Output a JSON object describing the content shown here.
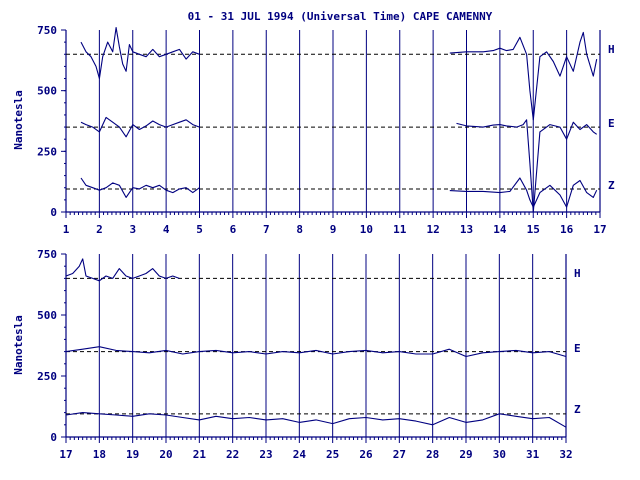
{
  "chart_data": {
    "type": "line",
    "title": "01 - 31 JUL 1994 (Universal Time) CAPE CAMENNY",
    "ylabel": "Nanotesla",
    "ylim": [
      0,
      750
    ],
    "y_ticks": [
      "0",
      "250",
      "500",
      "750"
    ],
    "colors": {
      "trace": "#000080",
      "axis": "#000080"
    },
    "components": [
      "H",
      "E",
      "Z"
    ],
    "panels": [
      {
        "xlim": [
          1,
          17
        ],
        "x_ticks": [
          "1",
          "2",
          "3",
          "4",
          "5",
          "6",
          "7",
          "8",
          "9",
          "10",
          "11",
          "12",
          "13",
          "14",
          "15",
          "16",
          "17"
        ],
        "baselines": {
          "H": 650,
          "E": 350,
          "Z": 95
        },
        "segments": [
          {
            "name": "H",
            "x": [
              1.45,
              1.6,
              1.75,
              1.9,
              2.0,
              2.1,
              2.25,
              2.4,
              2.5,
              2.6,
              2.7,
              2.8,
              2.9,
              3.0,
              3.2,
              3.4,
              3.6,
              3.8,
              4.0,
              4.2,
              4.4,
              4.6,
              4.8,
              5.0
            ],
            "y": [
              700,
              660,
              640,
              600,
              550,
              640,
              700,
              660,
              760,
              680,
              610,
              580,
              690,
              660,
              650,
              640,
              670,
              640,
              650,
              660,
              670,
              630,
              660,
              650
            ]
          },
          {
            "name": "H",
            "x": [
              12.5,
              13.0,
              13.5,
              13.8,
              14.0,
              14.2,
              14.4,
              14.6,
              14.8,
              14.9,
              15.0,
              15.2,
              15.4,
              15.6,
              15.8,
              16.0,
              16.2,
              16.4,
              16.5,
              16.6,
              16.8,
              16.9
            ],
            "y": [
              655,
              660,
              660,
              665,
              675,
              665,
              670,
              720,
              650,
              500,
              380,
              640,
              660,
              620,
              560,
              640,
              580,
              700,
              740,
              650,
              560,
              630
            ]
          },
          {
            "name": "E",
            "x": [
              1.45,
              1.6,
              1.8,
              2.0,
              2.2,
              2.4,
              2.6,
              2.8,
              3.0,
              3.2,
              3.4,
              3.6,
              3.8,
              4.0,
              4.2,
              4.4,
              4.6,
              4.8,
              5.0
            ],
            "y": [
              370,
              360,
              350,
              330,
              390,
              370,
              350,
              310,
              360,
              340,
              355,
              375,
              360,
              350,
              360,
              370,
              380,
              360,
              350
            ]
          },
          {
            "name": "E",
            "x": [
              12.7,
              13.0,
              13.5,
              13.8,
              14.0,
              14.2,
              14.5,
              14.7,
              14.8,
              14.9,
              15.0,
              15.2,
              15.5,
              15.8,
              16.0,
              16.2,
              16.4,
              16.6,
              16.8,
              16.9
            ],
            "y": [
              365,
              355,
              350,
              358,
              360,
              355,
              350,
              360,
              380,
              200,
              0,
              330,
              360,
              350,
              300,
              370,
              340,
              360,
              330,
              320
            ]
          },
          {
            "name": "Z",
            "x": [
              1.45,
              1.6,
              1.8,
              2.0,
              2.2,
              2.4,
              2.6,
              2.8,
              3.0,
              3.2,
              3.4,
              3.6,
              3.8,
              4.0,
              4.2,
              4.4,
              4.6,
              4.8,
              5.0
            ],
            "y": [
              140,
              110,
              100,
              90,
              100,
              120,
              110,
              60,
              100,
              95,
              110,
              100,
              110,
              90,
              80,
              95,
              100,
              80,
              100
            ]
          },
          {
            "name": "Z",
            "x": [
              12.5,
              13.0,
              13.5,
              14.0,
              14.3,
              14.6,
              14.8,
              14.9,
              15.0,
              15.2,
              15.5,
              15.8,
              16.0,
              16.2,
              16.4,
              16.6,
              16.8,
              16.9
            ],
            "y": [
              88,
              85,
              85,
              80,
              85,
              140,
              90,
              50,
              20,
              80,
              110,
              70,
              20,
              110,
              130,
              80,
              60,
              90
            ]
          }
        ]
      },
      {
        "xlim": [
          17,
          32
        ],
        "x_ticks": [
          "17",
          "18",
          "19",
          "20",
          "21",
          "22",
          "23",
          "24",
          "25",
          "26",
          "27",
          "28",
          "29",
          "30",
          "31",
          "32"
        ],
        "baselines": {
          "H": 650,
          "E": 350,
          "Z": 95
        },
        "segments": [
          {
            "name": "H",
            "x": [
              17.0,
              17.2,
              17.4,
              17.5,
              17.6,
              17.8,
              18.0,
              18.2,
              18.4,
              18.6,
              18.8,
              19.0,
              19.2,
              19.4,
              19.6,
              19.8,
              20.0,
              20.2,
              20.4
            ],
            "y": [
              660,
              670,
              700,
              730,
              660,
              650,
              640,
              660,
              650,
              690,
              660,
              650,
              660,
              670,
              690,
              660,
              650,
              660,
              650
            ]
          },
          {
            "name": "E",
            "x": [
              17.0,
              17.5,
              18.0,
              18.5,
              19.0,
              19.5,
              20.0,
              20.5,
              21.0,
              21.5,
              22.0,
              22.5,
              23.0,
              23.5,
              24.0,
              24.5,
              25.0,
              25.5,
              26.0,
              26.5,
              27.0,
              27.5,
              28.0,
              28.5,
              29.0,
              29.5,
              30.0,
              30.5,
              31.0,
              31.5,
              32.0
            ],
            "y": [
              350,
              360,
              370,
              355,
              350,
              345,
              355,
              340,
              350,
              355,
              345,
              350,
              340,
              350,
              345,
              355,
              340,
              350,
              355,
              345,
              350,
              340,
              340,
              360,
              330,
              345,
              350,
              355,
              345,
              350,
              330
            ]
          },
          {
            "name": "Z",
            "x": [
              17.0,
              17.5,
              18.0,
              18.5,
              19.0,
              19.5,
              20.0,
              20.5,
              21.0,
              21.5,
              22.0,
              22.5,
              23.0,
              23.5,
              24.0,
              24.5,
              25.0,
              25.5,
              26.0,
              26.5,
              27.0,
              27.5,
              28.0,
              28.5,
              29.0,
              29.5,
              30.0,
              30.5,
              31.0,
              31.5,
              32.0
            ],
            "y": [
              90,
              100,
              95,
              90,
              85,
              95,
              90,
              80,
              70,
              85,
              75,
              80,
              70,
              75,
              60,
              70,
              55,
              75,
              80,
              70,
              75,
              65,
              50,
              80,
              60,
              70,
              95,
              85,
              75,
              80,
              40
            ]
          }
        ]
      }
    ]
  }
}
